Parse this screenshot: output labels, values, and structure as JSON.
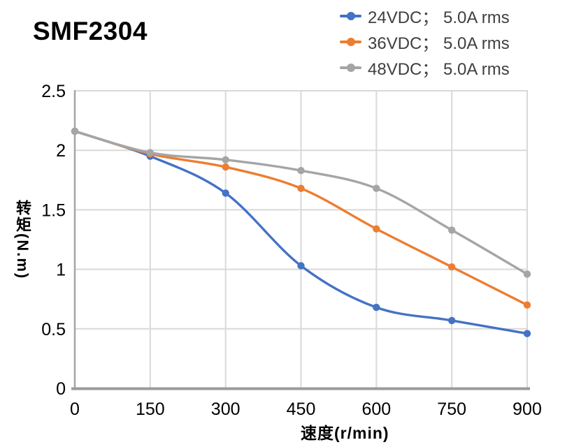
{
  "page": {
    "title": "SMF2304"
  },
  "chart_data": {
    "type": "line",
    "title": "SMF2304",
    "xlabel": "速度(r/min)",
    "ylabel": "转矩(N.m)",
    "smooth": true,
    "grid": true,
    "legend_position": "top-right",
    "xlim": [
      0,
      900
    ],
    "ylim": [
      0,
      2.5
    ],
    "x_ticks": [
      "0",
      "150",
      "300",
      "450",
      "600",
      "750",
      "900"
    ],
    "y_ticks": [
      "0",
      "0.5",
      "1",
      "1.5",
      "2",
      "2.5"
    ],
    "categories": [
      0,
      150,
      300,
      450,
      600,
      750,
      900
    ],
    "series": [
      {
        "name": "24VDC； 5.0A rms",
        "color": "#4472C4",
        "values": [
          2.16,
          1.95,
          1.64,
          1.03,
          0.68,
          0.57,
          0.46
        ]
      },
      {
        "name": "36VDC； 5.0A rms",
        "color": "#ED7D31",
        "values": [
          2.16,
          1.97,
          1.86,
          1.68,
          1.34,
          1.02,
          0.7
        ]
      },
      {
        "name": "48VDC； 5.0A rms",
        "color": "#A5A5A5",
        "values": [
          2.16,
          1.98,
          1.92,
          1.83,
          1.68,
          1.33,
          0.96
        ]
      }
    ]
  },
  "colors": {
    "gridline": "#D9D9D9",
    "y_axis": "#A6A6A6",
    "x_axis": "#9B9B9B",
    "tick_label": "#000000",
    "legend_text": "#404040"
  }
}
